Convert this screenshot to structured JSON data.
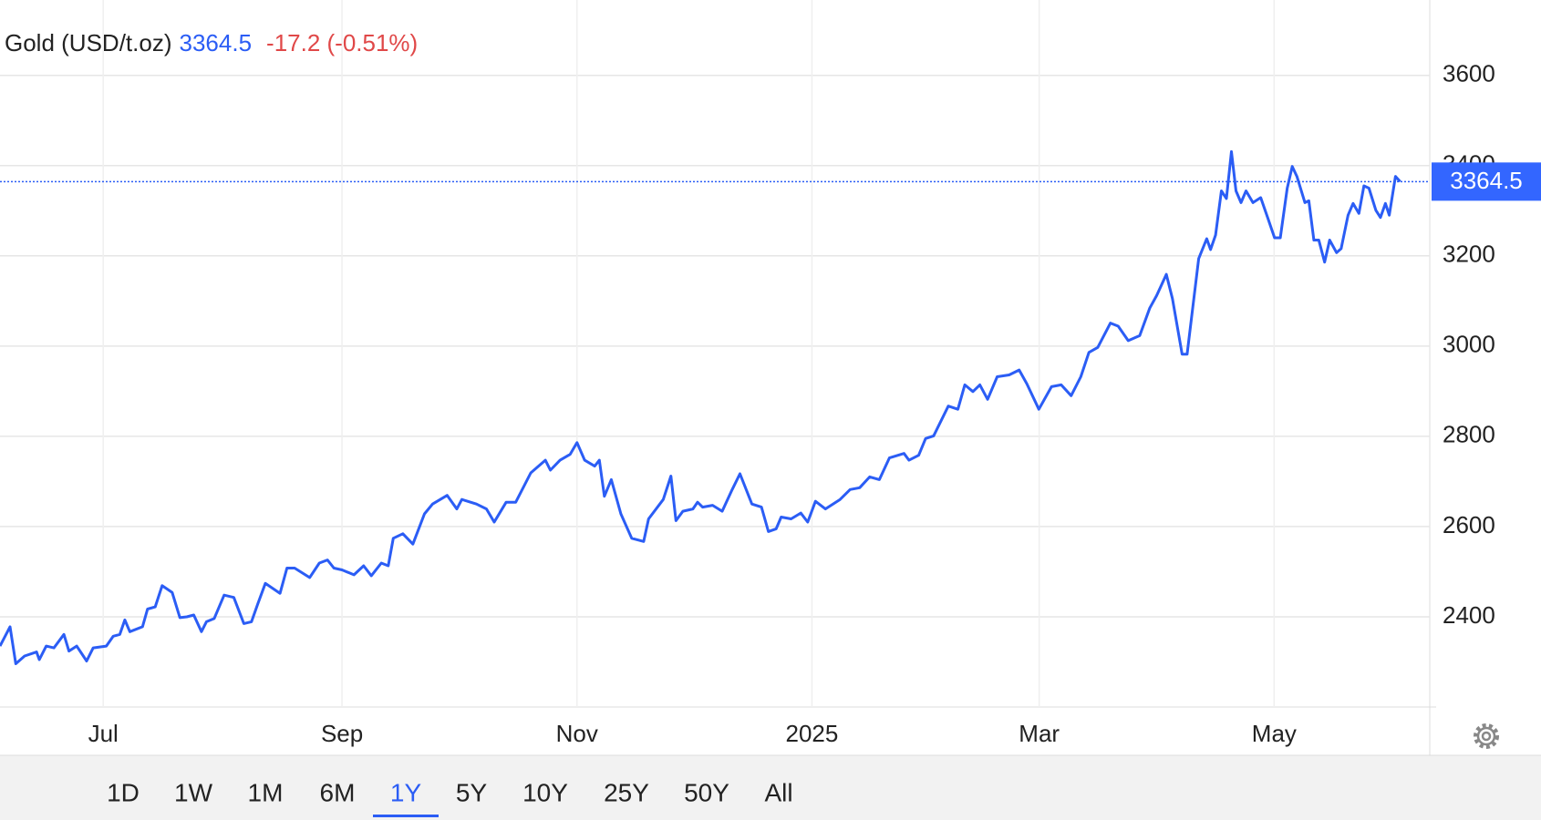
{
  "chart_data": {
    "type": "line",
    "title": "Gold (USD/t.oz)",
    "price": 3364.5,
    "change": "-17.2 (-0.51%)",
    "xlim": [
      -26.8,
      344.4
    ],
    "xticks": [
      {
        "value": 0,
        "label": "Jul"
      },
      {
        "value": 62,
        "label": "Sep"
      },
      {
        "value": 123,
        "label": "Nov"
      },
      {
        "value": 184,
        "label": "2025"
      },
      {
        "value": 243,
        "label": "Mar"
      },
      {
        "value": 304,
        "label": "May"
      }
    ],
    "ylim": [
      2200,
      3767
    ],
    "yticks": [
      2400,
      2600,
      2800,
      3000,
      3200,
      3400,
      3600
    ],
    "grid": true,
    "x": [
      -26.8,
      -24.2,
      -22.7,
      -20.4,
      -17.3,
      -16.6,
      -14.8,
      -12.8,
      -10.2,
      -8.9,
      -6.9,
      -4.3,
      -2.6,
      0.8,
      2.6,
      4.3,
      5.6,
      6.9,
      10.2,
      11.5,
      13.5,
      15.3,
      17.9,
      19.9,
      21.7,
      23.5,
      25.5,
      26.8,
      28.8,
      31.4,
      33.9,
      36.5,
      38.5,
      40.1,
      42.1,
      45.9,
      47.7,
      49.7,
      53.6,
      56.1,
      58.2,
      59.9,
      62.0,
      65.1,
      67.6,
      69.6,
      72.2,
      74.0,
      75.3,
      77.8,
      80.4,
      83.4,
      85.5,
      89.3,
      91.8,
      93.1,
      96.9,
      99.5,
      101.5,
      104.6,
      107.1,
      111.0,
      114.8,
      116.1,
      118.6,
      121.2,
      123.0,
      125.0,
      127.6,
      128.8,
      130.1,
      131.9,
      134.4,
      137.2,
      140.3,
      141.6,
      145.4,
      147.4,
      148.7,
      150.5,
      153.1,
      154.3,
      155.6,
      158.2,
      160.7,
      163.3,
      165.3,
      168.4,
      170.9,
      172.7,
      174.7,
      176.0,
      178.6,
      181.1,
      182.9,
      184.9,
      187.5,
      191.3,
      193.9,
      196.4,
      199.0,
      201.5,
      204.1,
      207.9,
      209.2,
      211.7,
      213.5,
      215.6,
      219.4,
      221.9,
      223.7,
      225.8,
      227.6,
      229.6,
      232.1,
      235.2,
      237.8,
      239.8,
      242.9,
      246.2,
      248.7,
      251.3,
      253.8,
      255.9,
      258.2,
      261.5,
      263.5,
      266.1,
      269.1,
      271.7,
      273.5,
      276.0,
      277.6,
      280.1,
      281.4,
      284.4,
      286.5,
      287.5,
      288.8,
      290.3,
      291.6,
      292.9,
      294.1,
      295.4,
      296.7,
      298.5,
      300.5,
      302.3,
      304.1,
      305.6,
      307.4,
      308.7,
      309.9,
      312.0,
      313.0,
      314.3,
      315.6,
      317.1,
      318.4,
      320.2,
      321.4,
      323.2,
      324.5,
      326.0,
      327.3,
      328.6,
      330.4,
      331.6,
      332.9,
      333.9,
      335.5,
      336.7
    ],
    "series": [
      {
        "name": "Gold",
        "color": "#2b5df5",
        "values": [
          2335,
          2378,
          2296,
          2313,
          2322,
          2305,
          2335,
          2331,
          2361,
          2324,
          2335,
          2302,
          2331,
          2335,
          2357,
          2361,
          2393,
          2367,
          2378,
          2417,
          2422,
          2469,
          2454,
          2398,
          2400,
          2404,
          2367,
          2389,
          2396,
          2448,
          2443,
          2385,
          2389,
          2428,
          2474,
          2452,
          2508,
          2508,
          2487,
          2519,
          2526,
          2508,
          2504,
          2493,
          2513,
          2491,
          2519,
          2513,
          2574,
          2584,
          2561,
          2628,
          2650,
          2669,
          2639,
          2660,
          2650,
          2639,
          2610,
          2654,
          2654,
          2719,
          2747,
          2725,
          2747,
          2760,
          2786,
          2747,
          2734,
          2747,
          2667,
          2704,
          2628,
          2574,
          2567,
          2617,
          2660,
          2712,
          2613,
          2634,
          2639,
          2654,
          2643,
          2647,
          2634,
          2682,
          2717,
          2650,
          2643,
          2589,
          2595,
          2621,
          2617,
          2630,
          2610,
          2656,
          2639,
          2660,
          2682,
          2686,
          2710,
          2704,
          2752,
          2762,
          2747,
          2758,
          2795,
          2801,
          2867,
          2860,
          2914,
          2899,
          2914,
          2882,
          2932,
          2936,
          2947,
          2916,
          2860,
          2910,
          2914,
          2890,
          2932,
          2986,
          2997,
          3051,
          3044,
          3012,
          3023,
          3084,
          3112,
          3159,
          3105,
          2982,
          2982,
          3194,
          3238,
          3214,
          3246,
          3344,
          3327,
          3431,
          3344,
          3318,
          3344,
          3318,
          3329,
          3285,
          3240,
          3240,
          3350,
          3398,
          3376,
          3318,
          3322,
          3235,
          3235,
          3186,
          3235,
          3207,
          3216,
          3290,
          3316,
          3294,
          3355,
          3350,
          3301,
          3285,
          3316,
          3290,
          3376,
          3364.5
        ]
      }
    ],
    "ranges": [
      "1D",
      "1W",
      "1M",
      "6M",
      "1Y",
      "5Y",
      "10Y",
      "25Y",
      "50Y",
      "All"
    ],
    "selected_range": "1Y"
  }
}
